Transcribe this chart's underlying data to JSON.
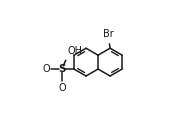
{
  "bg_color": "#ffffff",
  "line_color": "#1a1a1a",
  "lw": 1.1,
  "fs": 7.0,
  "figsize": [
    1.79,
    1.23
  ],
  "dpi": 100,
  "s": 0.22,
  "xlim": [
    -0.85,
    1.25
  ],
  "ylim": [
    -0.75,
    0.75
  ]
}
